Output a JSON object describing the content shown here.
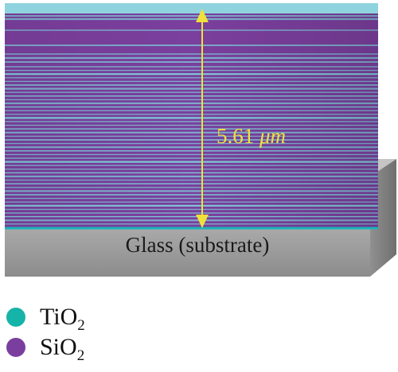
{
  "figure": {
    "thickness_value": "5.61",
    "thickness_unit": "μm",
    "substrate_label": "Glass (substrate)"
  },
  "legend": {
    "items": [
      {
        "element": "TiO",
        "subscript": "2",
        "color": "#16b3a8"
      },
      {
        "element": "SiO",
        "subscript": "2",
        "color": "#7a3f9e"
      }
    ]
  },
  "colors": {
    "tio2_layer": "#7fd2dc",
    "sio2_layer": "#7b3f9d",
    "annotation": "#f0e03a",
    "substrate": "#a9a9a9"
  }
}
